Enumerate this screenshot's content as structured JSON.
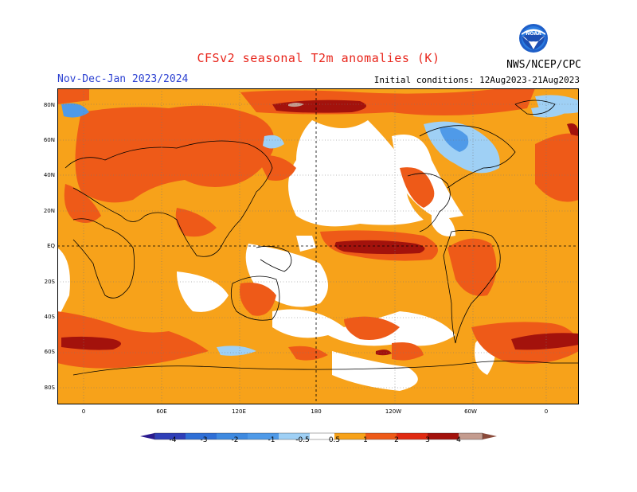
{
  "header": {
    "title": "CFSv2 seasonal T2m anomalies (K)",
    "period": "Nov-Dec-Jan 2023/2024",
    "initial_conditions": "Initial conditions: 12Aug2023-21Aug2023",
    "agency": "NWS/NCEP/CPC",
    "logo_text": "NOAA"
  },
  "map": {
    "lat_labels": [
      "80N",
      "60N",
      "40N",
      "20N",
      "EQ",
      "20S",
      "40S",
      "60S",
      "80S"
    ],
    "lon_labels": [
      "0",
      "60E",
      "120E",
      "180",
      "120W",
      "60W",
      "0"
    ]
  },
  "colorbar": {
    "labels": [
      "-4",
      "-3",
      "-2",
      "-1",
      "-0.5",
      "0.5",
      "1",
      "2",
      "3",
      "4"
    ],
    "colors": {
      "lt_-4": "#2a1a8f",
      "-4_-3": "#2f3fb8",
      "-3_-2": "#2f6fd6",
      "-2_-1": "#4f9ae8",
      "-1_-0.5": "#9fd0f5",
      "neutral": "#ffffff",
      "0.5_1": "#f7a21a",
      "1_2": "#ee5a18",
      "2_3": "#e02a12",
      "3_4": "#a3120c",
      "4_5": "#c49c8f",
      "gt_5": "#8a4a3a"
    }
  }
}
